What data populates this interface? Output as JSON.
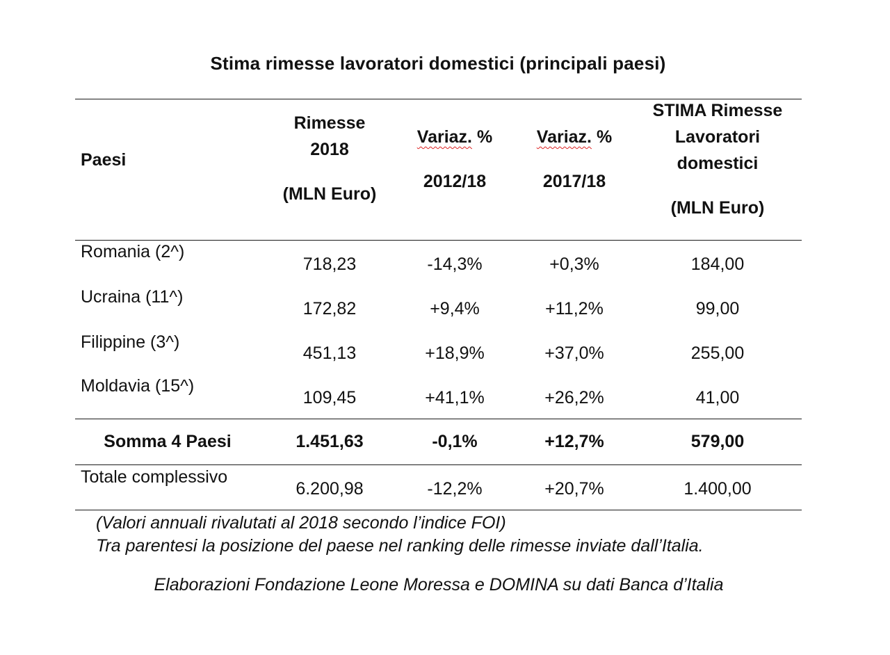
{
  "title": "Stima rimesse lavoratori domestici (principali paesi)",
  "table": {
    "headers": {
      "paesi": "Paesi",
      "rimesse_line1": "Rimesse",
      "rimesse_line2": "2018",
      "rimesse_line3": "(MLN Euro)",
      "var1_word": "Variaz.",
      "var1_pct": " %",
      "var1_period": "2012/18",
      "var2_word": "Variaz.",
      "var2_pct": " %",
      "var2_period": "2017/18",
      "stima_line1": "STIMA Rimesse",
      "stima_line2": "Lavoratori",
      "stima_line3": "domestici",
      "stima_line4": "(MLN Euro)"
    },
    "rows": [
      {
        "paese": "Romania (2^)",
        "rimesse": "718,23",
        "var_2012_18": "-14,3%",
        "var_2017_18": "+0,3%",
        "stima": "184,00"
      },
      {
        "paese": "Ucraina (11^)",
        "rimesse": "172,82",
        "var_2012_18": "+9,4%",
        "var_2017_18": "+11,2%",
        "stima": "99,00"
      },
      {
        "paese": "Filippine (3^)",
        "rimesse": "451,13",
        "var_2012_18": "+18,9%",
        "var_2017_18": "+37,0%",
        "stima": "255,00"
      },
      {
        "paese": "Moldavia (15^)",
        "rimesse": "109,45",
        "var_2012_18": "+41,1%",
        "var_2017_18": "+26,2%",
        "stima": "41,00"
      }
    ],
    "sum_row": {
      "paese": "Somma 4 Paesi",
      "rimesse": "1.451,63",
      "var_2012_18": "-0,1%",
      "var_2017_18": "+12,7%",
      "stima": "579,00"
    },
    "total_row": {
      "paese": "Totale complessivo",
      "rimesse": "6.200,98",
      "var_2012_18": "-12,2%",
      "var_2017_18": "+20,7%",
      "stima": "1.400,00"
    }
  },
  "notes": {
    "line1": "(Valori annuali rivalutati al 2018 secondo l’indice FOI)",
    "line2": "Tra parentesi la posizione del paese nel ranking delle rimesse inviate dall’Italia.",
    "source": "Elaborazioni Fondazione Leone Moressa e DOMINA su dati Banca d’Italia"
  }
}
